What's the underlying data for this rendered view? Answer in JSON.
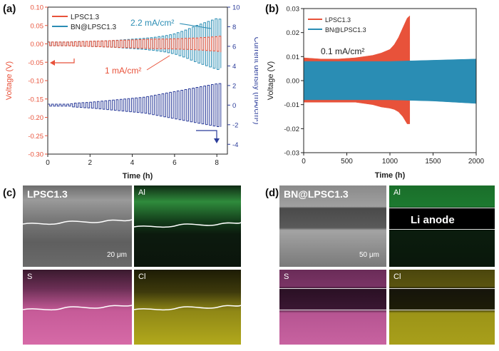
{
  "panels": {
    "a": "(a)",
    "b": "(b)",
    "c": "(c)",
    "d": "(d)"
  },
  "chart_data": [
    {
      "type": "line",
      "xlabel": "Time (h)",
      "ylabel": "Voltage (V)",
      "y2label": "Current density (mA/cm²)",
      "xlim": [
        0,
        8.5
      ],
      "ylim": [
        -0.3,
        0.1
      ],
      "y2lim": [
        -5,
        10
      ],
      "xticks": [
        "0",
        "2",
        "4",
        "6",
        "8"
      ],
      "yticks": [
        "0.10",
        "0.05",
        "0.00",
        "-0.05",
        "-0.10",
        "-0.15",
        "-0.20",
        "-0.25",
        "-0.30"
      ],
      "y2ticks": [
        "10",
        "8",
        "6",
        "4",
        "2",
        "0",
        "-2",
        "-4"
      ],
      "legend": [
        "LPSC1.3",
        "BN@LPSC1.3"
      ],
      "legend_position": "top-left",
      "annotations": [
        "2.2 mA/cm²",
        "1 mA/cm²"
      ],
      "series": [
        {
          "name": "LPSC1.3",
          "axis": "left",
          "x": [
            0,
            1,
            1.2,
            2,
            2.5,
            3,
            3.5,
            4,
            4.5,
            5,
            5.5,
            6,
            6.5,
            7,
            7.5,
            8,
            8.2
          ],
          "amplitude_V": [
            0.005,
            0.005,
            0.006,
            0.007,
            0.008,
            0.009,
            0.01,
            0.011,
            0.012,
            0.013,
            0.013,
            0.014,
            0.015,
            0.016,
            0.018,
            0.02,
            0.022
          ]
        },
        {
          "name": "BN@LPSC1.3",
          "axis": "left",
          "x": [
            0,
            1,
            1.2,
            2,
            2.5,
            3,
            3.5,
            4,
            4.5,
            5,
            5.5,
            6,
            6.5,
            7,
            7.5,
            8,
            8.2
          ],
          "amplitude_V": [
            0.005,
            0.005,
            0.006,
            0.007,
            0.008,
            0.009,
            0.011,
            0.013,
            0.015,
            0.018,
            0.022,
            0.028,
            0.038,
            0.05,
            0.06,
            0.07,
            0.065
          ]
        },
        {
          "name": "Current density",
          "axis": "right",
          "x": [
            0,
            1,
            1.2,
            2,
            2.5,
            3,
            3.5,
            4,
            4.5,
            5,
            5.5,
            6,
            6.5,
            7,
            7.5,
            8,
            8.2
          ],
          "amplitude_mAcm2": [
            0.1,
            0.1,
            0.2,
            0.3,
            0.4,
            0.5,
            0.6,
            0.7,
            0.8,
            1.0,
            1.2,
            1.4,
            1.6,
            1.8,
            2.0,
            2.2,
            2.2
          ]
        }
      ]
    },
    {
      "type": "line",
      "xlabel": "Time (h)",
      "ylabel": "Voltage (V)",
      "xlim": [
        0,
        2000
      ],
      "ylim": [
        -0.03,
        0.03
      ],
      "xticks": [
        "0",
        "500",
        "1000",
        "1500",
        "2000"
      ],
      "yticks": [
        "0.03",
        "0.02",
        "0.01",
        "0.00",
        "-0.01",
        "-0.02",
        "-0.03"
      ],
      "legend": [
        "LPSC1.3",
        "BN@LPSC1.3"
      ],
      "legend_position": "top-left",
      "annotations": [
        "0.1 mA/cm²"
      ],
      "series": [
        {
          "name": "LPSC1.3",
          "x": [
            0,
            200,
            400,
            600,
            800,
            900,
            1000,
            1050,
            1100,
            1150,
            1200,
            1230
          ],
          "upper_V": [
            0.0095,
            0.009,
            0.009,
            0.0095,
            0.0105,
            0.0115,
            0.013,
            0.015,
            0.018,
            0.022,
            0.026,
            0.027
          ],
          "lower_V": [
            -0.009,
            -0.009,
            -0.009,
            -0.009,
            -0.01,
            -0.011,
            -0.0115,
            -0.012,
            -0.013,
            -0.015,
            -0.018,
            -0.018
          ]
        },
        {
          "name": "BN@LPSC1.3",
          "x": [
            0,
            500,
            1000,
            1500,
            2000
          ],
          "upper_V": [
            0.008,
            0.008,
            0.008,
            0.0085,
            0.009
          ],
          "lower_V": [
            -0.008,
            -0.008,
            -0.008,
            -0.0085,
            -0.0095
          ]
        }
      ]
    }
  ],
  "micrographs": {
    "c": {
      "se_label": "LPSC1.3",
      "al_label": "Al",
      "s_label": "S",
      "cl_label": "Cl",
      "scale": "20 μm"
    },
    "d": {
      "se_label": "BN@LPSC1.3",
      "al_label": "Al",
      "anode_label": "Li anode",
      "s_label": "S",
      "cl_label": "Cl",
      "scale": "50 μm"
    }
  },
  "colors": {
    "lpsc": "#e8523a",
    "bn": "#2a8db4",
    "current": "#2b3c9a",
    "al": "#1fa23f",
    "s": "#d35fa0",
    "cl": "#c8be1e"
  }
}
